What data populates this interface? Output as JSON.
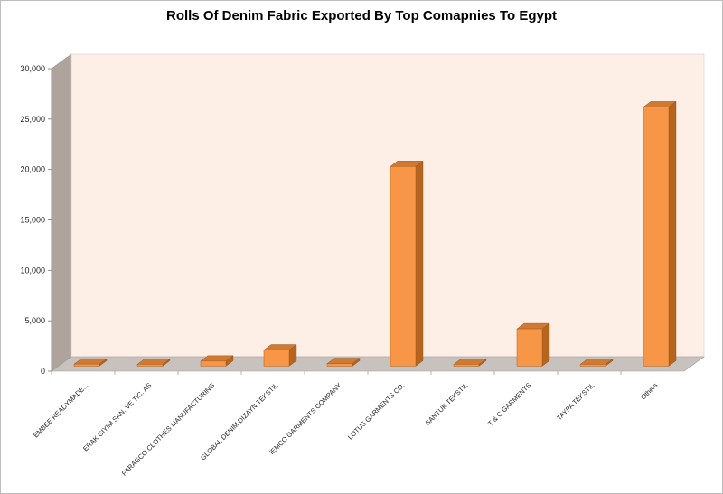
{
  "chart_data": {
    "type": "bar",
    "title": "Rolls Of Denim Fabric Exported By Top Comapnies To Egypt",
    "xlabel": "",
    "ylabel": "",
    "ylim": [
      0,
      30000
    ],
    "yticks": [
      "0",
      "5,000",
      "10,000",
      "15,000",
      "20,000",
      "25,000",
      "30,000"
    ],
    "grid": false,
    "legend": "none",
    "style": "3d-column",
    "categories": [
      "EMBEE READYMADE...",
      "ERAK GIYIM SAN. VE TIC. AS",
      "FARAGCO.CLOTHES MANUFACTURING",
      "GLOBAL DENIM DIZAYN TEKSTIL",
      "IEMCO GARMENTS COMPANY",
      "LOTUS GARMENTS CO.",
      "SANTUK TEKSTIL",
      "T & C GARMENTS",
      "TAYPA TEKSTIL",
      "Others"
    ],
    "values": [
      200,
      150,
      500,
      1600,
      250,
      19800,
      100,
      3700,
      50,
      25700
    ],
    "colors": {
      "bar_front": "#f79646",
      "bar_side": "#b5651d",
      "bar_top": "#cf7a30",
      "back_wall": "#fdeee6",
      "side_wall": "#aea39d",
      "floor": "#c8c2be"
    }
  }
}
